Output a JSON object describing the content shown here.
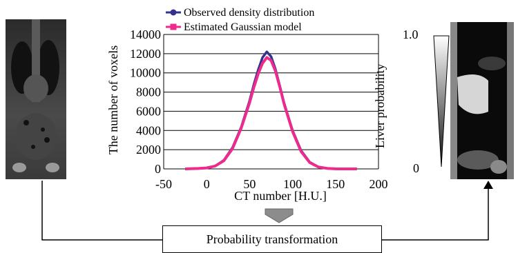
{
  "chart_data": {
    "type": "line",
    "xlabel": "CT number [H.U.]",
    "ylabel": "The number of voxels",
    "xlim": [
      -50,
      200
    ],
    "ylim": [
      0,
      14000
    ],
    "xticks": [
      "-50",
      "0",
      "50",
      "100",
      "150",
      "200"
    ],
    "yticks": [
      "0",
      "2000",
      "4000",
      "6000",
      "8000",
      "10000",
      "12000",
      "14000"
    ],
    "grid": "horizontal",
    "legend_position": "top",
    "series": [
      {
        "name": "Observed density distribution",
        "color": "#33338f",
        "marker": "circle",
        "x": [
          -25,
          -10,
          0,
          10,
          20,
          30,
          40,
          50,
          55,
          60,
          65,
          70,
          75,
          80,
          85,
          90,
          100,
          110,
          120,
          130,
          140,
          150,
          160
        ],
        "y": [
          0,
          40,
          100,
          300,
          900,
          2200,
          4300,
          7100,
          8800,
          10300,
          11600,
          12200,
          11700,
          10400,
          8700,
          6900,
          4000,
          1900,
          700,
          200,
          60,
          10,
          0
        ]
      },
      {
        "name": "Estimated Gaussian model",
        "color": "#ee2a8c",
        "marker": "square",
        "x": [
          -25,
          -10,
          0,
          10,
          20,
          30,
          40,
          50,
          55,
          60,
          65,
          70,
          75,
          80,
          85,
          90,
          100,
          110,
          120,
          130,
          140,
          150,
          160,
          175
        ],
        "y": [
          0,
          40,
          100,
          300,
          850,
          2100,
          4200,
          6900,
          8500,
          9900,
          11000,
          11600,
          11300,
          10200,
          8600,
          6800,
          3900,
          1800,
          650,
          200,
          60,
          10,
          0,
          0
        ]
      }
    ]
  },
  "probability_scale": {
    "title": "Liver probability",
    "top_label": "1.0",
    "bottom_label": "0"
  },
  "transform_box": {
    "label": "Probability transformation"
  },
  "colors": {
    "arrow_gray": "#8c8c8c",
    "line": "#000000"
  }
}
